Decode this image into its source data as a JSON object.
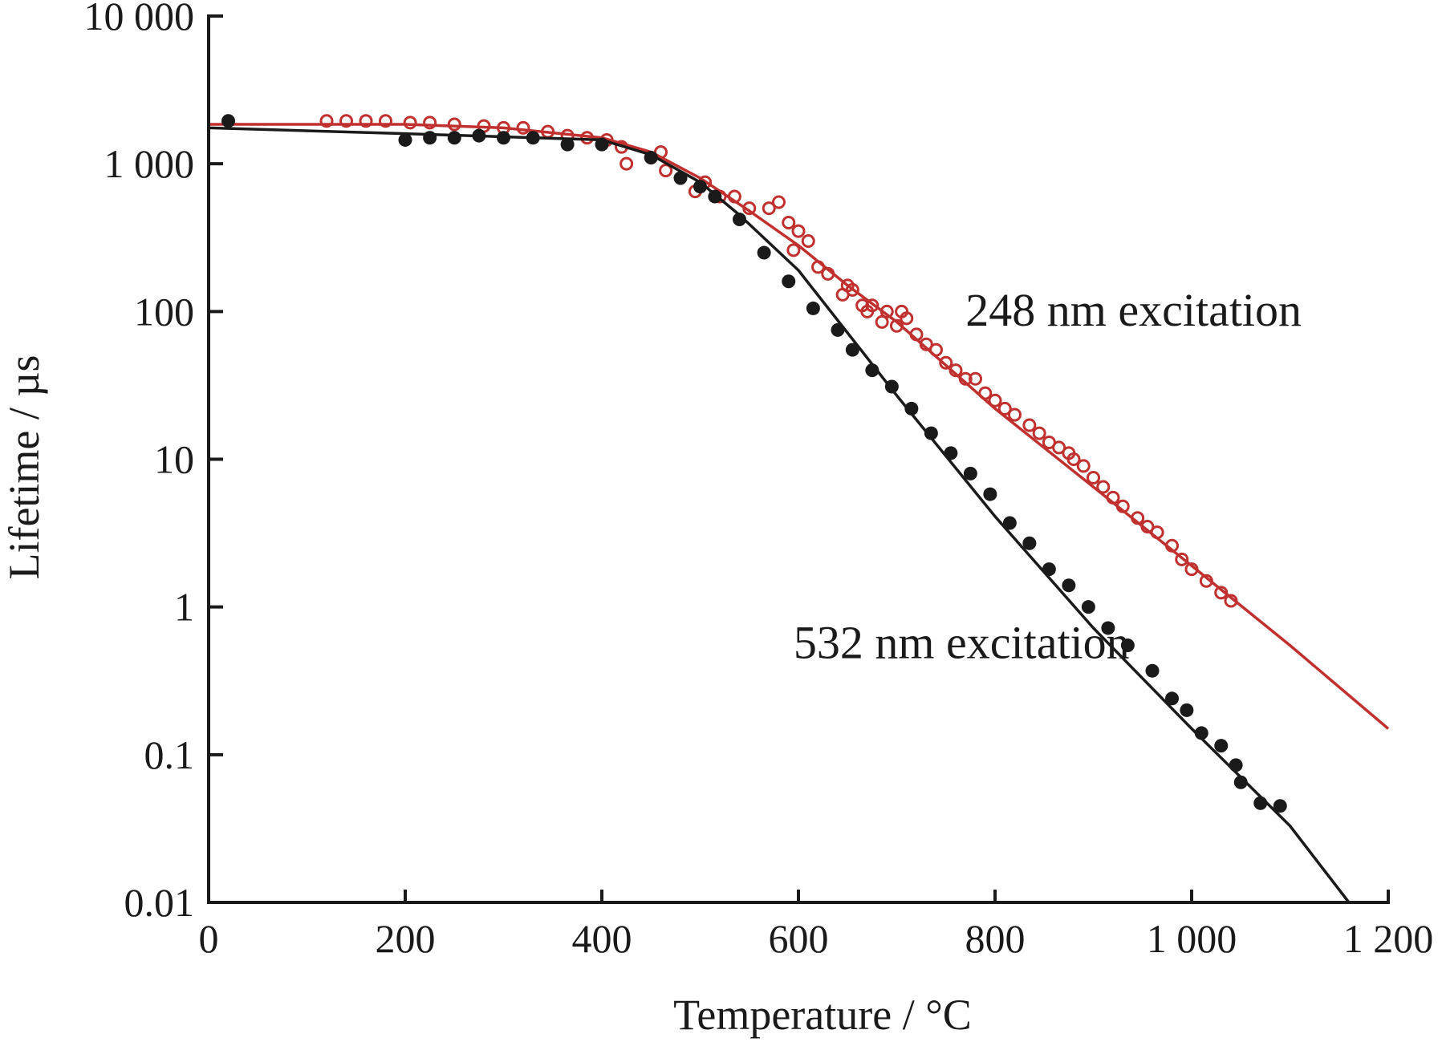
{
  "chart_data": {
    "type": "scatter",
    "xlabel": "Temperature / °C",
    "ylabel": "Lifetime / µs",
    "xlim": [
      0,
      1200
    ],
    "ylim": [
      0.01,
      10000
    ],
    "yscale": "log",
    "grid": false,
    "x_ticks": [
      {
        "value": 0,
        "label": "0"
      },
      {
        "value": 200,
        "label": "200"
      },
      {
        "value": 400,
        "label": "400"
      },
      {
        "value": 600,
        "label": "600"
      },
      {
        "value": 800,
        "label": "800"
      },
      {
        "value": 1000,
        "label": "1 000"
      },
      {
        "value": 1200,
        "label": "1 200"
      }
    ],
    "y_ticks": [
      {
        "value": 0.01,
        "label": "0.01"
      },
      {
        "value": 0.1,
        "label": "0.1"
      },
      {
        "value": 1,
        "label": "1"
      },
      {
        "value": 10,
        "label": "10"
      },
      {
        "value": 100,
        "label": "100"
      },
      {
        "value": 1000,
        "label": "1 000"
      },
      {
        "value": 10000,
        "label": "10 000"
      }
    ],
    "series": [
      {
        "name": "248 nm excitation",
        "color": "#c0302e",
        "marker": "open-circle",
        "points": [
          [
            120,
            1950
          ],
          [
            140,
            1950
          ],
          [
            160,
            1950
          ],
          [
            180,
            1950
          ],
          [
            205,
            1900
          ],
          [
            225,
            1900
          ],
          [
            250,
            1850
          ],
          [
            280,
            1800
          ],
          [
            300,
            1750
          ],
          [
            320,
            1750
          ],
          [
            345,
            1650
          ],
          [
            365,
            1550
          ],
          [
            385,
            1500
          ],
          [
            405,
            1450
          ],
          [
            420,
            1300
          ],
          [
            425,
            1000
          ],
          [
            450,
            1100
          ],
          [
            460,
            1200
          ],
          [
            465,
            900
          ],
          [
            495,
            650
          ],
          [
            505,
            750
          ],
          [
            520,
            600
          ],
          [
            535,
            600
          ],
          [
            550,
            500
          ],
          [
            570,
            500
          ],
          [
            580,
            550
          ],
          [
            590,
            400
          ],
          [
            595,
            260
          ],
          [
            600,
            350
          ],
          [
            610,
            300
          ],
          [
            620,
            200
          ],
          [
            630,
            180
          ],
          [
            645,
            130
          ],
          [
            650,
            150
          ],
          [
            655,
            140
          ],
          [
            665,
            110
          ],
          [
            670,
            100
          ],
          [
            675,
            110
          ],
          [
            685,
            85
          ],
          [
            690,
            100
          ],
          [
            700,
            80
          ],
          [
            705,
            100
          ],
          [
            710,
            90
          ],
          [
            720,
            70
          ],
          [
            730,
            60
          ],
          [
            740,
            55
          ],
          [
            750,
            45
          ],
          [
            760,
            40
          ],
          [
            770,
            35
          ],
          [
            780,
            35
          ],
          [
            790,
            28
          ],
          [
            800,
            25
          ],
          [
            810,
            22
          ],
          [
            820,
            20
          ],
          [
            835,
            17
          ],
          [
            845,
            15
          ],
          [
            855,
            13
          ],
          [
            865,
            12
          ],
          [
            875,
            11
          ],
          [
            880,
            10
          ],
          [
            890,
            9
          ],
          [
            900,
            7.5
          ],
          [
            910,
            6.5
          ],
          [
            920,
            5.5
          ],
          [
            930,
            4.8
          ],
          [
            945,
            4
          ],
          [
            955,
            3.5
          ],
          [
            965,
            3.2
          ],
          [
            980,
            2.6
          ],
          [
            990,
            2.1
          ],
          [
            1000,
            1.8
          ],
          [
            1015,
            1.5
          ],
          [
            1030,
            1.25
          ],
          [
            1040,
            1.1
          ]
        ],
        "fit": [
          [
            0,
            1850
          ],
          [
            200,
            1850
          ],
          [
            300,
            1750
          ],
          [
            400,
            1500
          ],
          [
            450,
            1200
          ],
          [
            500,
            800
          ],
          [
            550,
            480
          ],
          [
            600,
            280
          ],
          [
            650,
            150
          ],
          [
            700,
            85
          ],
          [
            800,
            22
          ],
          [
            900,
            6.5
          ],
          [
            1000,
            1.9
          ],
          [
            1100,
            0.55
          ],
          [
            1200,
            0.15
          ]
        ]
      },
      {
        "name": "532 nm excitation",
        "color": "#1a1a1a",
        "marker": "filled-circle",
        "points": [
          [
            20,
            1950
          ],
          [
            200,
            1450
          ],
          [
            225,
            1500
          ],
          [
            250,
            1500
          ],
          [
            275,
            1550
          ],
          [
            300,
            1500
          ],
          [
            330,
            1500
          ],
          [
            365,
            1350
          ],
          [
            400,
            1350
          ],
          [
            450,
            1100
          ],
          [
            480,
            800
          ],
          [
            500,
            700
          ],
          [
            515,
            600
          ],
          [
            540,
            420
          ],
          [
            565,
            250
          ],
          [
            590,
            160
          ],
          [
            615,
            105
          ],
          [
            640,
            75
          ],
          [
            655,
            55
          ],
          [
            675,
            40
          ],
          [
            695,
            31
          ],
          [
            715,
            22
          ],
          [
            735,
            15
          ],
          [
            755,
            11
          ],
          [
            775,
            8
          ],
          [
            795,
            5.8
          ],
          [
            815,
            3.7
          ],
          [
            835,
            2.7
          ],
          [
            855,
            1.8
          ],
          [
            875,
            1.4
          ],
          [
            895,
            1
          ],
          [
            915,
            0.72
          ],
          [
            935,
            0.55
          ],
          [
            960,
            0.37
          ],
          [
            980,
            0.24
          ],
          [
            995,
            0.2
          ],
          [
            1010,
            0.14
          ],
          [
            1030,
            0.115
          ],
          [
            1045,
            0.085
          ],
          [
            1050,
            0.065
          ],
          [
            1070,
            0.047
          ],
          [
            1090,
            0.045
          ]
        ],
        "fit": [
          [
            0,
            1750
          ],
          [
            200,
            1600
          ],
          [
            400,
            1450
          ],
          [
            450,
            1150
          ],
          [
            500,
            750
          ],
          [
            540,
            450
          ],
          [
            600,
            190
          ],
          [
            700,
            27
          ],
          [
            800,
            4.1
          ],
          [
            900,
            0.72
          ],
          [
            1000,
            0.15
          ],
          [
            1100,
            0.033
          ],
          [
            1160,
            0.01
          ]
        ]
      }
    ],
    "annotations": [
      {
        "text": "248 nm excitation",
        "series": 0,
        "x": 770,
        "y": 80
      },
      {
        "text": "532 nm excitation",
        "series": 1,
        "x": 595,
        "y": 0.45
      }
    ]
  }
}
